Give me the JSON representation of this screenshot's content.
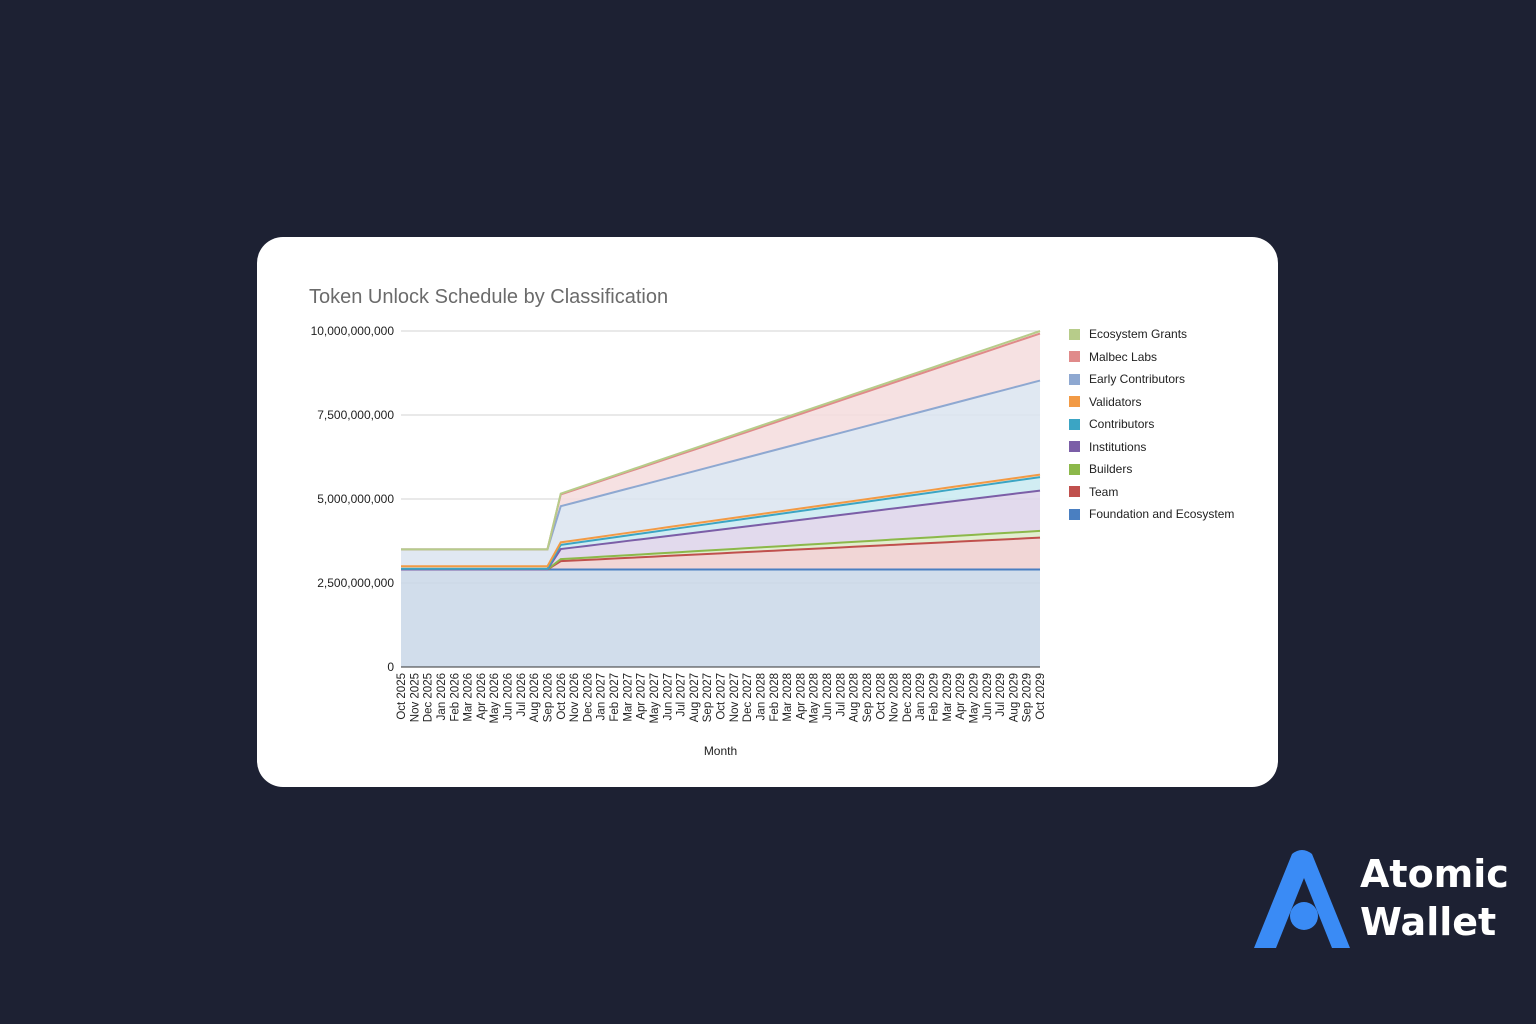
{
  "brand": {
    "name_line1": "Atomic",
    "name_line2": "Wallet",
    "logo_icon": "atomic-wallet-logo-icon",
    "accent": "#3a8bf5"
  },
  "chart_data": {
    "type": "area",
    "stacked": true,
    "title": "Token Unlock Schedule by Classification",
    "xlabel": "Month",
    "ylabel": "",
    "ylim": [
      0,
      10000000000
    ],
    "yticks": [
      "0",
      "2,500,000,000",
      "5,000,000,000",
      "7,500,000,000",
      "10,000,000,000"
    ],
    "y_tick_values": [
      0,
      2500000000,
      5000000000,
      7500000000,
      10000000000
    ],
    "grid": true,
    "legend_position": "right",
    "x": [
      "Oct 2025",
      "Nov 2025",
      "Dec 2025",
      "Jan 2026",
      "Feb 2026",
      "Mar 2026",
      "Apr 2026",
      "May 2026",
      "Jun 2026",
      "Jul 2026",
      "Aug 2026",
      "Sep 2026",
      "Oct 2026",
      "Nov 2026",
      "Dec 2026",
      "Jan 2027",
      "Feb 2027",
      "Mar 2027",
      "Apr 2027",
      "May 2027",
      "Jun 2027",
      "Jul 2027",
      "Aug 2027",
      "Sep 2027",
      "Oct 2027",
      "Nov 2027",
      "Dec 2027",
      "Jan 2028",
      "Feb 2028",
      "Mar 2028",
      "Apr 2028",
      "May 2028",
      "Jun 2028",
      "Jul 2028",
      "Aug 2028",
      "Sep 2028",
      "Oct 2028",
      "Nov 2028",
      "Dec 2028",
      "Jan 2029",
      "Feb 2029",
      "Mar 2029",
      "Apr 2029",
      "May 2029",
      "Jun 2029",
      "Jul 2029",
      "Aug 2029",
      "Sep 2029",
      "Oct 2029"
    ],
    "series": [
      {
        "name": "Foundation and Ecosystem",
        "color": "#4a7fc1",
        "fill": "#c9d7e8",
        "start": 2900000000,
        "step": 2900000000,
        "end": 2900000000
      },
      {
        "name": "Team",
        "color": "#c0504d",
        "fill": "#eecfcf",
        "start": 0,
        "step": 250000000,
        "end": 950000000
      },
      {
        "name": "Builders",
        "color": "#8cb84a",
        "fill": "#dcebc8",
        "start": 0,
        "step": 60000000,
        "end": 200000000
      },
      {
        "name": "Institutions",
        "color": "#7b5ea7",
        "fill": "#ddd3ea",
        "start": 0,
        "step": 300000000,
        "end": 1200000000
      },
      {
        "name": "Contributors",
        "color": "#3ba5c4",
        "fill": "#c9eaf1",
        "start": 25000000,
        "step": 125000000,
        "end": 400000000
      },
      {
        "name": "Validators",
        "color": "#f29a45",
        "fill": "#fce1c6",
        "start": 75000000,
        "step": 75000000,
        "end": 75000000
      },
      {
        "name": "Early Contributors",
        "color": "#8ea8d1",
        "fill": "#dbe4f0",
        "start": 500000000,
        "step": 1075000000,
        "end": 2800000000
      },
      {
        "name": "Malbec Labs",
        "color": "#e08a8a",
        "fill": "#f4dcdd",
        "start": 0,
        "step": 350000000,
        "end": 1400000000
      },
      {
        "name": "Ecosystem Grants",
        "color": "#b7cc8a",
        "fill": "#e6efd4",
        "start": 0,
        "step": 25000000,
        "end": 75000000
      }
    ],
    "step_month_index": 12,
    "legend_order": [
      "Ecosystem Grants",
      "Malbec Labs",
      "Early Contributors",
      "Validators",
      "Contributors",
      "Institutions",
      "Builders",
      "Team",
      "Foundation and Ecosystem"
    ]
  }
}
